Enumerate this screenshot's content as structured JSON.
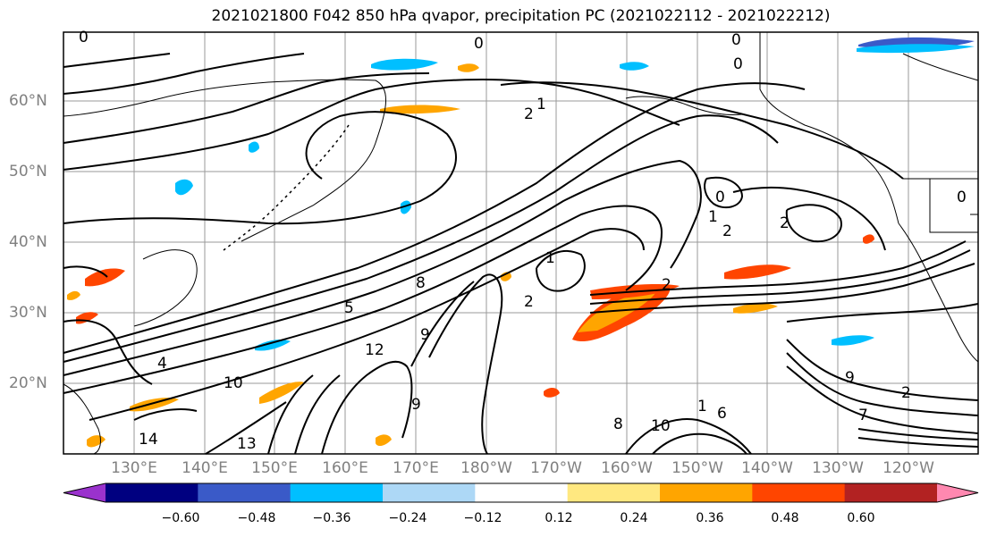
{
  "title": "2021021800 F042 850 hPa qvapor, precipitation PC (2021022112 - 2021022212)",
  "map": {
    "lat_labels": [
      "60°N",
      "50°N",
      "40°N",
      "30°N",
      "20°N"
    ],
    "lon_labels": [
      "130°E",
      "140°E",
      "150°E",
      "160°E",
      "170°E",
      "180°W",
      "170°W",
      "160°W",
      "150°W",
      "140°W",
      "130°W",
      "120°W"
    ],
    "contour_labels": [
      "0",
      "0",
      "0",
      "0",
      "1",
      "2",
      "0",
      "1",
      "2",
      "1",
      "2",
      "2",
      "5",
      "8",
      "9",
      "10",
      "12",
      "13",
      "14",
      "4",
      "6",
      "7",
      "8",
      "9",
      "10",
      "2",
      "0",
      "9",
      "1",
      "2"
    ],
    "grid": true
  },
  "colorbar": {
    "ticks": [
      "−0.60",
      "−0.48",
      "−0.36",
      "−0.24",
      "−0.12",
      "0.12",
      "0.24",
      "0.36",
      "0.48",
      "0.60"
    ],
    "colors": [
      "#9a32cd",
      "#000080",
      "#3a5ac8",
      "#00bfff",
      "#add8f6",
      "#ffffff",
      "#ffe880",
      "#ffa500",
      "#ff4500",
      "#b22222",
      "#ff88b0"
    ]
  }
}
